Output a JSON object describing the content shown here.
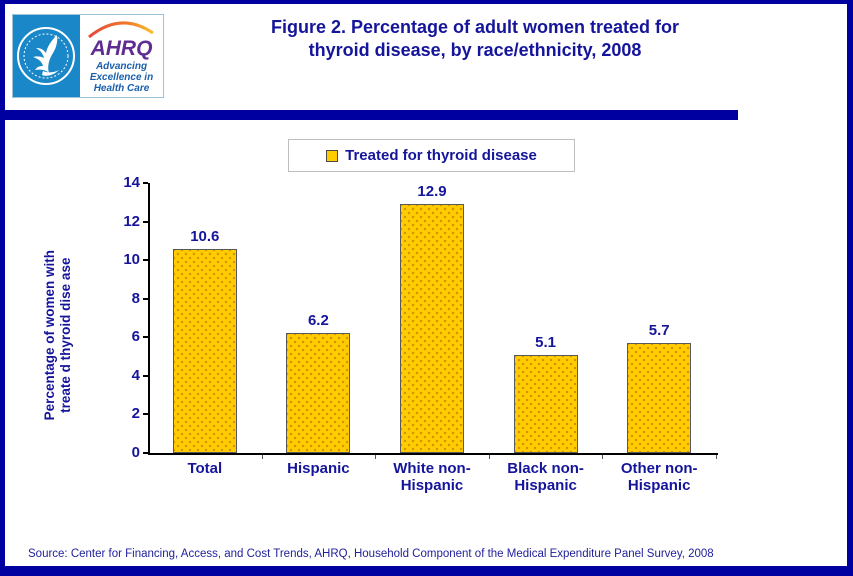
{
  "page": {
    "title_lines": [
      "Figure 2. Percentage of adult women treated for",
      "thyroid disease, by race/ethnicity, 2008"
    ],
    "source": "Source: Center for Financing, Access, and Cost Trends, AHRQ, Household Component of the Medical Expenditure Panel Survey, 2008"
  },
  "logo": {
    "hhs_seal": "hhs-eagle-seal",
    "ahrq_acronym": "AHRQ",
    "ahrq_tagline_lines": [
      "Advancing",
      "Excellence in",
      "Health Care"
    ]
  },
  "legend": {
    "label": "Treated for thyroid disease"
  },
  "chart_data": {
    "type": "bar",
    "title": "Figure 2. Percentage of adult women treated for thyroid disease, by race/ethnicity, 2008",
    "categories": [
      "Total",
      "Hispanic",
      "White non-Hispanic",
      "Black non-Hispanic",
      "Other non-Hispanic"
    ],
    "values": [
      10.6,
      6.2,
      12.9,
      5.1,
      5.7
    ],
    "value_labels": [
      "10.6",
      "6.2",
      "12.9",
      "5.1",
      "5.7"
    ],
    "series_label": "Treated for thyroid disease",
    "xlabel": "",
    "ylabel": "Percentage of women with treated thyroid disease",
    "ylabel_lines": [
      "Percentage of women with",
      "treate d thyroid dise ase"
    ],
    "ylim": [
      0,
      14
    ],
    "yticks": [
      0,
      2,
      4,
      6,
      8,
      10,
      12,
      14
    ],
    "grid": false,
    "legend_position": "top-center",
    "bar_color": "#FFCC00",
    "bar_pattern_dot_color": "#D49000",
    "label_color": "#15159B"
  },
  "colors": {
    "page_border_navy": "#0000A0",
    "text_navy": "#15159B",
    "axis_black": "#000000",
    "bar_fill": "#FFCC00",
    "bar_border": "#595959",
    "legend_border": "#BEBEBE",
    "hhs_blue": "#1987C8",
    "ahrq_purple": "#5F2D91",
    "tagline_blue": "#1B5FAC",
    "source_text": "#22229B"
  }
}
